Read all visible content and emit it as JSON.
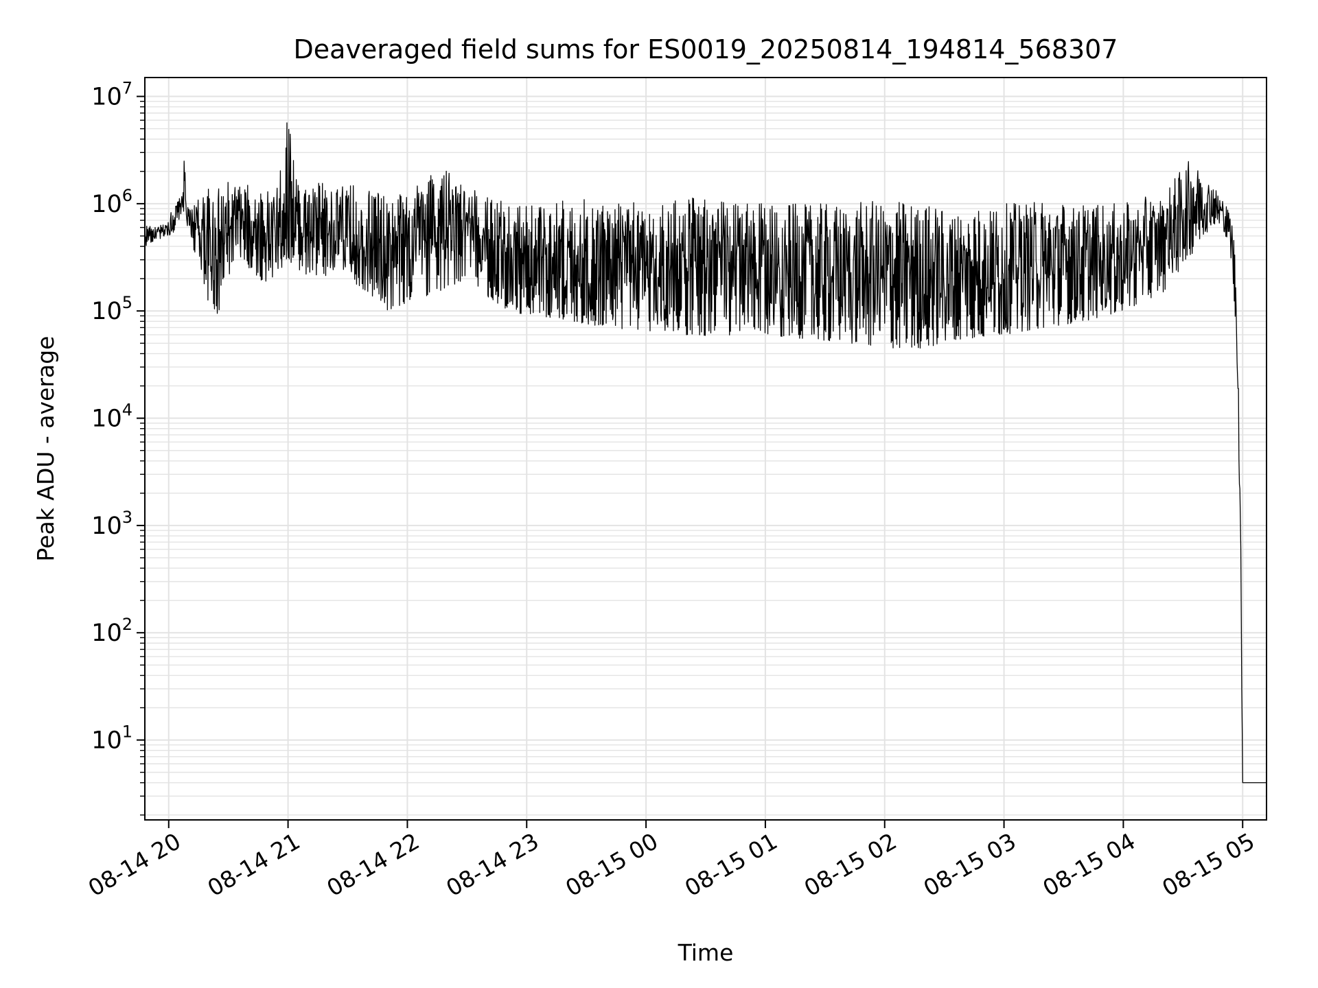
{
  "chart_data": {
    "type": "line",
    "title": "Deaveraged field sums for ES0019_20250814_194814_568307",
    "xlabel": "Time",
    "ylabel": "Peak ADU - average",
    "yscale": "log",
    "ylim": [
      1.8,
      15000000
    ],
    "xlim": [
      "2025-08-14 19:48:00",
      "2025-08-15 05:12:00"
    ],
    "x_ticks": [
      {
        "value": "2025-08-14 20:00",
        "label": "08-14 20"
      },
      {
        "value": "2025-08-14 21:00",
        "label": "08-14 21"
      },
      {
        "value": "2025-08-14 22:00",
        "label": "08-14 22"
      },
      {
        "value": "2025-08-14 23:00",
        "label": "08-14 23"
      },
      {
        "value": "2025-08-15 00:00",
        "label": "08-15 00"
      },
      {
        "value": "2025-08-15 01:00",
        "label": "08-15 01"
      },
      {
        "value": "2025-08-15 02:00",
        "label": "08-15 02"
      },
      {
        "value": "2025-08-15 03:00",
        "label": "08-15 03"
      },
      {
        "value": "2025-08-15 04:00",
        "label": "08-15 04"
      },
      {
        "value": "2025-08-15 05:00",
        "label": "08-15 05"
      }
    ],
    "y_ticks": [
      {
        "value": 10,
        "base": "10",
        "exp": "1"
      },
      {
        "value": 100,
        "base": "10",
        "exp": "2"
      },
      {
        "value": 1000,
        "base": "10",
        "exp": "3"
      },
      {
        "value": 10000,
        "base": "10",
        "exp": "4"
      },
      {
        "value": 100000,
        "base": "10",
        "exp": "5"
      },
      {
        "value": 1000000,
        "base": "10",
        "exp": "6"
      },
      {
        "value": 10000000,
        "base": "10",
        "exp": "7"
      }
    ],
    "grid": true,
    "line_color": "#000000",
    "grid_color": "#e3e3e3",
    "series": [
      {
        "x": [
          "2025-08-14 19:48",
          "2025-08-14 19:53",
          "2025-08-14 19:58",
          "2025-08-14 20:02",
          "2025-08-14 20:05",
          "2025-08-14 20:07",
          "2025-08-14 20:08",
          "2025-08-14 20:09",
          "2025-08-14 20:12",
          "2025-08-14 20:16",
          "2025-08-14 20:20",
          "2025-08-14 20:25",
          "2025-08-14 20:30",
          "2025-08-14 20:35",
          "2025-08-14 20:40",
          "2025-08-14 20:45",
          "2025-08-14 20:50",
          "2025-08-14 20:55",
          "2025-08-14 21:00",
          "2025-08-14 21:05",
          "2025-08-14 21:10",
          "2025-08-14 21:15",
          "2025-08-14 21:20",
          "2025-08-14 21:25",
          "2025-08-14 21:30",
          "2025-08-14 21:40",
          "2025-08-14 21:50",
          "2025-08-14 22:00",
          "2025-08-14 22:15",
          "2025-08-14 22:30",
          "2025-08-14 22:45",
          "2025-08-14 23:00",
          "2025-08-14 23:20",
          "2025-08-14 23:40",
          "2025-08-15 00:00",
          "2025-08-15 00:20",
          "2025-08-15 00:40",
          "2025-08-15 01:00",
          "2025-08-15 01:20",
          "2025-08-15 01:40",
          "2025-08-15 02:00",
          "2025-08-15 02:20",
          "2025-08-15 02:40",
          "2025-08-15 03:00",
          "2025-08-15 03:20",
          "2025-08-15 03:40",
          "2025-08-15 04:00",
          "2025-08-15 04:20",
          "2025-08-15 04:35",
          "2025-08-15 04:45",
          "2025-08-15 04:50",
          "2025-08-15 04:53",
          "2025-08-15 04:55",
          "2025-08-15 04:57",
          "2025-08-15 04:58",
          "2025-08-15 04:59",
          "2025-08-15 05:00",
          "2025-08-15 05:02",
          "2025-08-15 05:05",
          "2025-08-15 05:12"
        ],
        "low": [
          400000,
          450000,
          480000,
          520000,
          700000,
          900000,
          800000,
          600000,
          400000,
          250000,
          120000,
          90000,
          200000,
          300000,
          250000,
          200000,
          180000,
          220000,
          300000,
          250000,
          200000,
          180000,
          220000,
          250000,
          200000,
          150000,
          100000,
          120000,
          150000,
          200000,
          110000,
          90000,
          80000,
          70000,
          65000,
          60000,
          58000,
          60000,
          55000,
          50000,
          45000,
          45000,
          55000,
          60000,
          70000,
          80000,
          100000,
          150000,
          350000,
          650000,
          600000,
          400000,
          200000,
          50000,
          5000,
          300,
          4,
          4,
          4,
          4
        ],
        "high": [
          650000,
          600000,
          650000,
          900000,
          1100000,
          1200000,
          3300000,
          900000,
          1000000,
          1200000,
          1400000,
          1400000,
          1600000,
          1500000,
          1500000,
          1400000,
          1300000,
          1500000,
          7000000,
          1600000,
          1500000,
          1600000,
          1500000,
          1400000,
          1500000,
          1500000,
          1200000,
          1400000,
          2400000,
          1400000,
          1200000,
          1000000,
          1100000,
          1100000,
          1000000,
          1200000,
          1100000,
          1000000,
          1000000,
          1000000,
          1100000,
          1000000,
          900000,
          1000000,
          1100000,
          1000000,
          1000000,
          1300000,
          2800000,
          1500000,
          1100000,
          900000,
          700000,
          200000,
          20000,
          1000,
          4,
          4,
          4,
          4
        ]
      }
    ]
  }
}
